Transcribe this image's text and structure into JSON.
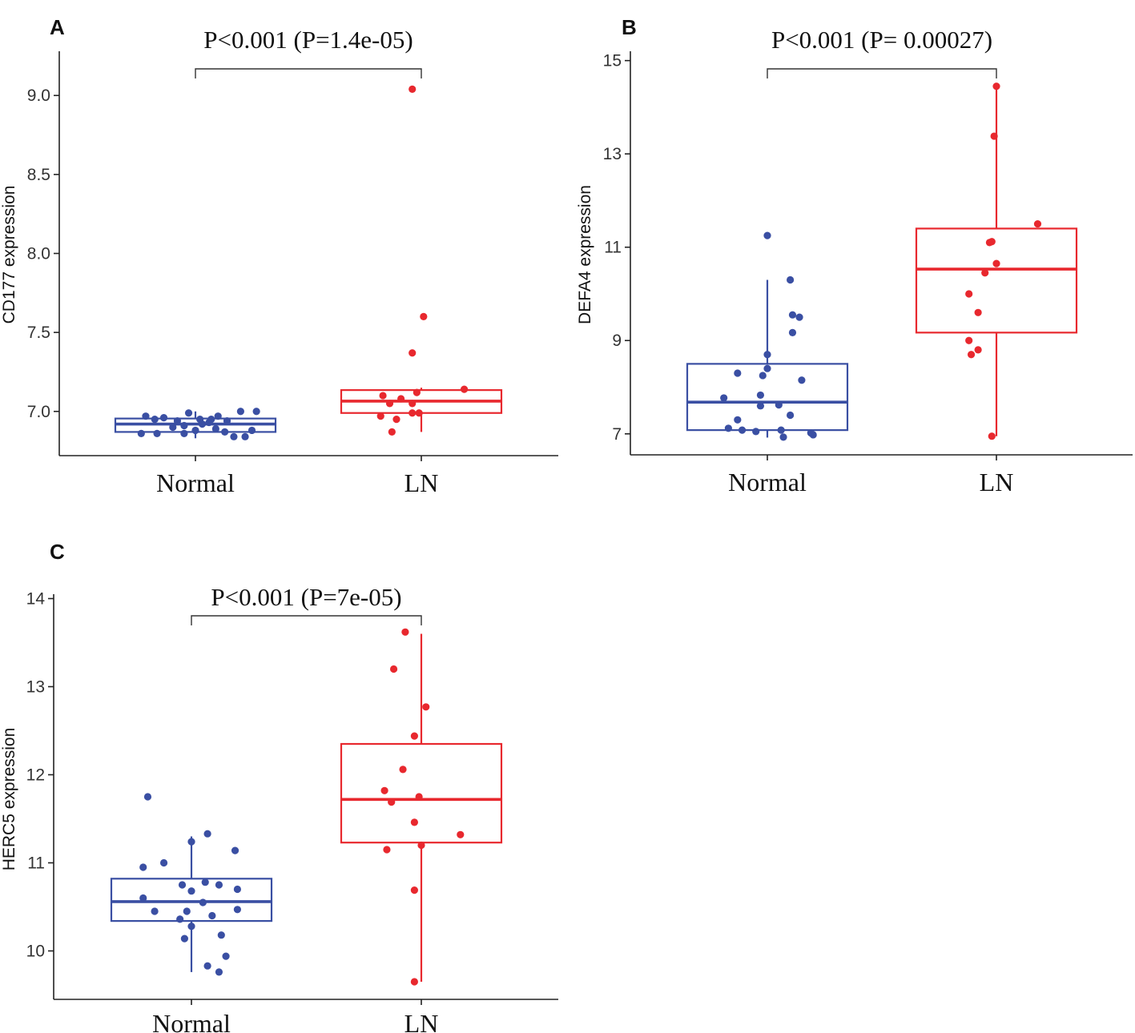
{
  "chart_data": [
    {
      "type": "box",
      "panel": "A",
      "ylabel": "CD177 expression",
      "categories": [
        "Normal",
        "LN"
      ],
      "ylim": [
        6.72,
        9.28
      ],
      "yticks": [
        7.0,
        7.5,
        8.0,
        8.5,
        9.0
      ],
      "ytick_labels": [
        "7.0",
        "7.5",
        "8.0",
        "8.5",
        "9.0"
      ],
      "annotation": "P<0.001  (P=1.4e-05)",
      "colors": [
        "#3a4fa3",
        "#e8282e"
      ],
      "series": [
        {
          "name": "Normal",
          "box": {
            "q1": 6.87,
            "median": 6.92,
            "q3": 6.955,
            "whisker_low": 6.83,
            "whisker_high": 7.0
          },
          "points": [
            {
              "x": -0.22,
              "y": 6.97
            },
            {
              "x": -0.18,
              "y": 6.95
            },
            {
              "x": -0.14,
              "y": 6.96
            },
            {
              "x": -0.08,
              "y": 6.94
            },
            {
              "x": -0.03,
              "y": 6.99
            },
            {
              "x": 0.02,
              "y": 6.95
            },
            {
              "x": 0.06,
              "y": 6.93
            },
            {
              "x": 0.1,
              "y": 6.97
            },
            {
              "x": 0.14,
              "y": 6.94
            },
            {
              "x": 0.2,
              "y": 7.0
            },
            {
              "x": 0.27,
              "y": 7.0
            },
            {
              "x": -0.24,
              "y": 6.86
            },
            {
              "x": -0.17,
              "y": 6.86
            },
            {
              "x": -0.1,
              "y": 6.9
            },
            {
              "x": -0.05,
              "y": 6.91
            },
            {
              "x": 0.0,
              "y": 6.88
            },
            {
              "x": -0.05,
              "y": 6.86
            },
            {
              "x": 0.03,
              "y": 6.92
            },
            {
              "x": 0.09,
              "y": 6.89
            },
            {
              "x": 0.13,
              "y": 6.87
            },
            {
              "x": 0.17,
              "y": 6.84
            },
            {
              "x": 0.22,
              "y": 6.84
            },
            {
              "x": 0.25,
              "y": 6.88
            },
            {
              "x": 0.07,
              "y": 6.95
            }
          ]
        },
        {
          "name": "LN",
          "box": {
            "q1": 6.99,
            "median": 7.065,
            "q3": 7.135,
            "whisker_low": 6.87,
            "whisker_high": 7.15
          },
          "points": [
            {
              "x": -0.04,
              "y": 9.04
            },
            {
              "x": 0.01,
              "y": 7.6
            },
            {
              "x": -0.04,
              "y": 7.37
            },
            {
              "x": 0.19,
              "y": 7.14
            },
            {
              "x": -0.02,
              "y": 7.12
            },
            {
              "x": -0.17,
              "y": 7.1
            },
            {
              "x": -0.09,
              "y": 7.08
            },
            {
              "x": -0.14,
              "y": 7.05
            },
            {
              "x": -0.04,
              "y": 7.05
            },
            {
              "x": -0.18,
              "y": 6.97
            },
            {
              "x": -0.01,
              "y": 6.99
            },
            {
              "x": -0.11,
              "y": 6.95
            },
            {
              "x": -0.04,
              "y": 6.99
            },
            {
              "x": -0.13,
              "y": 6.87
            }
          ]
        }
      ]
    },
    {
      "type": "box",
      "panel": "B",
      "ylabel": "DEFA4 expression",
      "categories": [
        "Normal",
        "LN"
      ],
      "ylim": [
        6.55,
        15.2
      ],
      "yticks": [
        7,
        9,
        11,
        13,
        15
      ],
      "ytick_labels": [
        "7",
        "9",
        "11",
        "13",
        "15"
      ],
      "annotation": "P<0.001  (P= 0.00027)",
      "colors": [
        "#3a4fa3",
        "#e8282e"
      ],
      "series": [
        {
          "name": "Normal",
          "box": {
            "q1": 7.08,
            "median": 7.68,
            "q3": 8.5,
            "whisker_low": 6.92,
            "whisker_high": 10.3
          },
          "points": [
            {
              "x": 0.0,
              "y": 11.25
            },
            {
              "x": 0.1,
              "y": 10.3
            },
            {
              "x": 0.11,
              "y": 9.55
            },
            {
              "x": 0.14,
              "y": 9.5
            },
            {
              "x": 0.11,
              "y": 9.17
            },
            {
              "x": 0.0,
              "y": 8.7
            },
            {
              "x": 0.0,
              "y": 8.4
            },
            {
              "x": -0.13,
              "y": 8.3
            },
            {
              "x": -0.02,
              "y": 8.25
            },
            {
              "x": 0.15,
              "y": 8.15
            },
            {
              "x": -0.19,
              "y": 7.77
            },
            {
              "x": -0.03,
              "y": 7.83
            },
            {
              "x": -0.03,
              "y": 7.6
            },
            {
              "x": 0.05,
              "y": 7.62
            },
            {
              "x": 0.1,
              "y": 7.4
            },
            {
              "x": -0.13,
              "y": 7.3
            },
            {
              "x": -0.17,
              "y": 7.12
            },
            {
              "x": -0.11,
              "y": 7.08
            },
            {
              "x": -0.05,
              "y": 7.05
            },
            {
              "x": 0.06,
              "y": 7.08
            },
            {
              "x": 0.19,
              "y": 7.02
            },
            {
              "x": 0.07,
              "y": 6.93
            },
            {
              "x": 0.2,
              "y": 6.98
            }
          ]
        },
        {
          "name": "LN",
          "box": {
            "q1": 9.17,
            "median": 10.53,
            "q3": 11.4,
            "whisker_low": 6.95,
            "whisker_high": 14.45
          },
          "points": [
            {
              "x": 0.0,
              "y": 14.45
            },
            {
              "x": -0.01,
              "y": 13.38
            },
            {
              "x": 0.18,
              "y": 11.5
            },
            {
              "x": -0.02,
              "y": 11.12
            },
            {
              "x": -0.03,
              "y": 11.1
            },
            {
              "x": 0.0,
              "y": 10.65
            },
            {
              "x": -0.05,
              "y": 10.45
            },
            {
              "x": -0.12,
              "y": 10.0
            },
            {
              "x": -0.08,
              "y": 9.6
            },
            {
              "x": -0.12,
              "y": 9.0
            },
            {
              "x": -0.08,
              "y": 8.8
            },
            {
              "x": -0.11,
              "y": 8.7
            },
            {
              "x": -0.02,
              "y": 6.95
            }
          ]
        }
      ]
    },
    {
      "type": "box",
      "panel": "C",
      "ylabel": "HERC5 expression",
      "categories": [
        "Normal",
        "LN"
      ],
      "ylim": [
        9.45,
        14.05
      ],
      "yticks": [
        10,
        11,
        12,
        13,
        14
      ],
      "ytick_labels": [
        "10",
        "11",
        "12",
        "13",
        "14"
      ],
      "annotation": "P<0.001  (P=7e-05)",
      "colors": [
        "#3a4fa3",
        "#e8282e"
      ],
      "series": [
        {
          "name": "Normal",
          "box": {
            "q1": 10.34,
            "median": 10.56,
            "q3": 10.82,
            "whisker_low": 9.76,
            "whisker_high": 11.3
          },
          "points": [
            {
              "x": -0.19,
              "y": 11.75
            },
            {
              "x": 0.07,
              "y": 11.33
            },
            {
              "x": 0.0,
              "y": 11.24
            },
            {
              "x": 0.19,
              "y": 11.14
            },
            {
              "x": -0.12,
              "y": 11.0
            },
            {
              "x": -0.21,
              "y": 10.95
            },
            {
              "x": -0.04,
              "y": 10.75
            },
            {
              "x": 0.06,
              "y": 10.78
            },
            {
              "x": 0.12,
              "y": 10.75
            },
            {
              "x": 0.0,
              "y": 10.68
            },
            {
              "x": 0.2,
              "y": 10.7
            },
            {
              "x": -0.21,
              "y": 10.6
            },
            {
              "x": 0.05,
              "y": 10.55
            },
            {
              "x": -0.16,
              "y": 10.45
            },
            {
              "x": -0.02,
              "y": 10.45
            },
            {
              "x": 0.2,
              "y": 10.47
            },
            {
              "x": 0.09,
              "y": 10.4
            },
            {
              "x": -0.05,
              "y": 10.36
            },
            {
              "x": 0.0,
              "y": 10.28
            },
            {
              "x": 0.13,
              "y": 10.18
            },
            {
              "x": -0.03,
              "y": 10.14
            },
            {
              "x": 0.15,
              "y": 9.94
            },
            {
              "x": 0.07,
              "y": 9.83
            },
            {
              "x": 0.12,
              "y": 9.76
            }
          ]
        },
        {
          "name": "LN",
          "box": {
            "q1": 11.23,
            "median": 11.72,
            "q3": 12.35,
            "whisker_low": 9.65,
            "whisker_high": 13.6
          },
          "points": [
            {
              "x": -0.07,
              "y": 13.62
            },
            {
              "x": -0.12,
              "y": 13.2
            },
            {
              "x": 0.02,
              "y": 12.77
            },
            {
              "x": -0.03,
              "y": 12.44
            },
            {
              "x": -0.08,
              "y": 12.06
            },
            {
              "x": -0.16,
              "y": 11.82
            },
            {
              "x": -0.13,
              "y": 11.69
            },
            {
              "x": -0.01,
              "y": 11.75
            },
            {
              "x": -0.03,
              "y": 11.46
            },
            {
              "x": 0.17,
              "y": 11.32
            },
            {
              "x": 0.0,
              "y": 11.2
            },
            {
              "x": -0.15,
              "y": 11.15
            },
            {
              "x": -0.03,
              "y": 10.69
            },
            {
              "x": -0.03,
              "y": 9.65
            }
          ]
        }
      ]
    }
  ]
}
